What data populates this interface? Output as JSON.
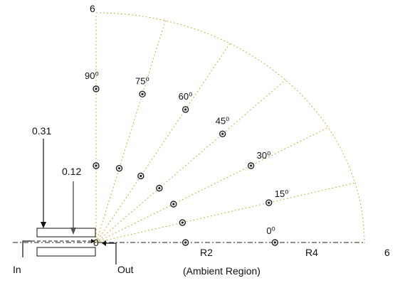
{
  "top_label": "6",
  "right_label": "6",
  "dim_outer": "0.31",
  "dim_inner": "0.12",
  "origin_label": "0",
  "inlet_label": "In",
  "outlet_label": "Out",
  "r2_label": "R2",
  "r4_label": "R4",
  "ambient_label": "(Ambient Region)",
  "angles": [
    {
      "deg": 90,
      "label": "90⁰"
    },
    {
      "deg": 75,
      "label": "75⁰"
    },
    {
      "deg": 60,
      "label": "60⁰"
    },
    {
      "deg": 45,
      "label": "45⁰"
    },
    {
      "deg": 30,
      "label": "30⁰"
    },
    {
      "deg": 15,
      "label": "15⁰"
    },
    {
      "deg": 0,
      "label": "0⁰"
    }
  ],
  "probe_radii": [
    2,
    4
  ]
}
